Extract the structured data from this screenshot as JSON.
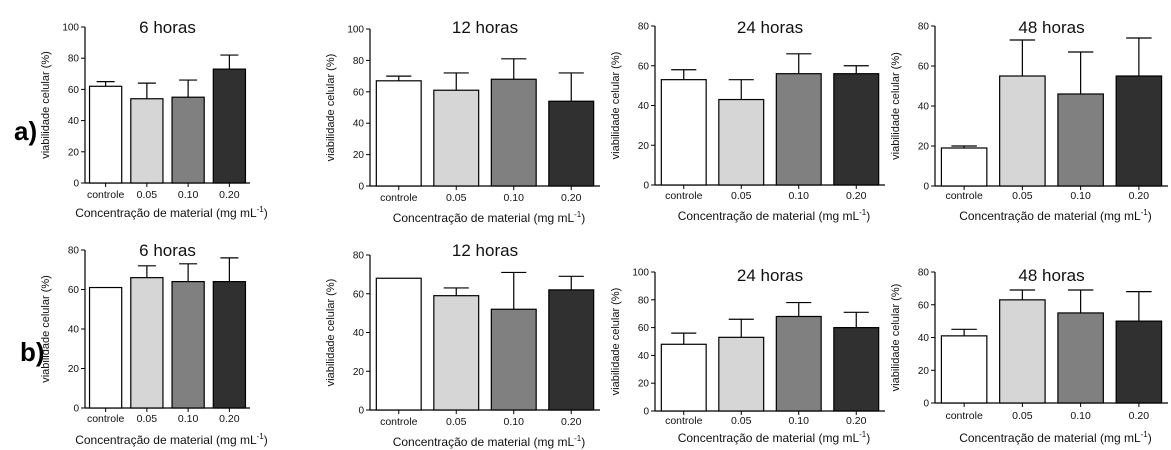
{
  "figure": {
    "row_labels": [
      "a)",
      "b)"
    ],
    "bar_colors": [
      "#ffffff",
      "#d6d6d6",
      "#808080",
      "#303030"
    ]
  },
  "chart_data": [
    {
      "type": "bar",
      "row": "a",
      "title": "6 horas",
      "xlabel": "Concentração de material (mg mL",
      "xlabel_sup": "-1",
      "xlabel_end": ")",
      "ylabel": "viabilidade celular (%)",
      "ylim": [
        0,
        100
      ],
      "yticks": [
        0,
        20,
        40,
        60,
        80,
        100
      ],
      "categories": [
        "controle",
        "0.05",
        "0.10",
        "0.20"
      ],
      "values": [
        62,
        54,
        55,
        73
      ],
      "errors": [
        3,
        10,
        11,
        9
      ]
    },
    {
      "type": "bar",
      "row": "a",
      "title": "12 horas",
      "xlabel": "Concentração de material (mg mL",
      "xlabel_sup": "-1",
      "xlabel_end": ")",
      "ylabel": "viabilidade celular (%)",
      "ylim": [
        0,
        100
      ],
      "yticks": [
        0,
        20,
        40,
        60,
        80,
        100
      ],
      "categories": [
        "controle",
        "0.05",
        "0.10",
        "0.20"
      ],
      "values": [
        67,
        61,
        68,
        54
      ],
      "errors": [
        3,
        11,
        13,
        18
      ]
    },
    {
      "type": "bar",
      "row": "a",
      "title": "24 horas",
      "xlabel": "Concentração de material (mg mL",
      "xlabel_sup": "-1",
      "xlabel_end": ")",
      "ylabel": "viabilidade celular (%)",
      "ylim": [
        0,
        80
      ],
      "yticks": [
        0,
        20,
        40,
        60,
        80
      ],
      "categories": [
        "controle",
        "0.05",
        "0.10",
        "0.20"
      ],
      "values": [
        53,
        43,
        56,
        56
      ],
      "errors": [
        5,
        10,
        10,
        4
      ]
    },
    {
      "type": "bar",
      "row": "a",
      "title": "48 horas",
      "xlabel": "Concentração de material (mg mL",
      "xlabel_sup": "-1",
      "xlabel_end": ")",
      "ylabel": "viabilidade celular (%)",
      "ylim": [
        0,
        80
      ],
      "yticks": [
        0,
        20,
        40,
        60,
        80
      ],
      "categories": [
        "controle",
        "0.05",
        "0.10",
        "0.20"
      ],
      "values": [
        19,
        55,
        46,
        55
      ],
      "errors": [
        1,
        18,
        21,
        19
      ]
    },
    {
      "type": "bar",
      "row": "b",
      "title": "6 horas",
      "xlabel": "Concentração de material (mg mL",
      "xlabel_sup": "-1",
      "xlabel_end": ")",
      "ylabel": "viabilidade celular (%)",
      "ylim": [
        0,
        80
      ],
      "yticks": [
        0,
        20,
        40,
        60,
        80
      ],
      "categories": [
        "controle",
        "0.05",
        "0.10",
        "0.20"
      ],
      "values": [
        61,
        66,
        64,
        64
      ],
      "errors": [
        0,
        6,
        9,
        12
      ]
    },
    {
      "type": "bar",
      "row": "b",
      "title": "12 horas",
      "xlabel": "Concentração de material (mg mL",
      "xlabel_sup": "-1",
      "xlabel_end": ")",
      "ylabel": "viabilidade celular (%)",
      "ylim": [
        0,
        80
      ],
      "yticks": [
        0,
        20,
        40,
        60,
        80
      ],
      "categories": [
        "controle",
        "0.05",
        "0.10",
        "0.20"
      ],
      "values": [
        68,
        59,
        52,
        62
      ],
      "errors": [
        0,
        4,
        19,
        7
      ]
    },
    {
      "type": "bar",
      "row": "b",
      "title": "24 horas",
      "xlabel": "Concentração de material (mg mL",
      "xlabel_sup": "-1",
      "xlabel_end": ")",
      "ylabel": "viabilidade celular (%)",
      "ylim": [
        0,
        100
      ],
      "yticks": [
        0,
        20,
        40,
        60,
        80,
        100
      ],
      "categories": [
        "controle",
        "0.05",
        "0.10",
        "0.20"
      ],
      "values": [
        48,
        53,
        68,
        60
      ],
      "errors": [
        8,
        13,
        10,
        11
      ]
    },
    {
      "type": "bar",
      "row": "b",
      "title": "48 horas",
      "xlabel": "Concentração de material (mg mL",
      "xlabel_sup": "-1",
      "xlabel_end": ")",
      "ylabel": "viabilidade celular (%)",
      "ylim": [
        0,
        80
      ],
      "yticks": [
        0,
        20,
        40,
        60,
        80
      ],
      "categories": [
        "controle",
        "0.05",
        "0.10",
        "0.20"
      ],
      "values": [
        41,
        63,
        55,
        50
      ],
      "errors": [
        4,
        6,
        14,
        18
      ]
    }
  ]
}
